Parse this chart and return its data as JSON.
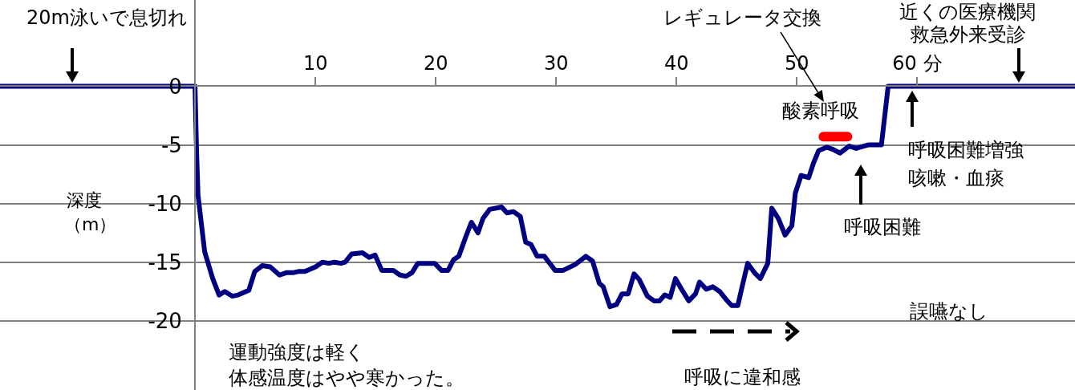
{
  "chart_data": {
    "type": "line",
    "ylabel": "深度（m）",
    "xlim": [
      -16.2,
      73.1
    ],
    "ylim": [
      -25.9,
      7.35
    ],
    "xticks": [
      10,
      20,
      30,
      40,
      50,
      {
        "value": 60,
        "label": "60 分"
      }
    ],
    "yticks": [
      0,
      -5,
      -10,
      -15,
      -20
    ],
    "grid": "y",
    "series": [
      {
        "color": "#000080",
        "x": [
          -16.2,
          0,
          0.13,
          0.25,
          0.8,
          1.47,
          2.0,
          2.47,
          3.09,
          3.58,
          4.47,
          4.96,
          5.58,
          6.24,
          7.02,
          7.58,
          8.13,
          8.58,
          9.13,
          10.02,
          10.58,
          11.13,
          11.58,
          12.13,
          12.47,
          13.02,
          13.91,
          14.47,
          14.96,
          15.51,
          16.47,
          17.02,
          17.53,
          18.02,
          18.51,
          19.91,
          20.47,
          21.02,
          21.47,
          21.91,
          22.47,
          22.96,
          23.51,
          23.91,
          24.47,
          25.47,
          25.91,
          26.47,
          27.02,
          27.47,
          27.91,
          28.42,
          29.02,
          29.91,
          30.58,
          31.58,
          32.47,
          33.02,
          33.58,
          33.91,
          34.47,
          35.02,
          35.47,
          35.98,
          36.47,
          36.91,
          37.58,
          38.13,
          38.58,
          39.02,
          39.47,
          39.91,
          40.47,
          41.02,
          41.58,
          41.91,
          42.47,
          43.02,
          43.58,
          44.13,
          44.58,
          45.09,
          45.47,
          45.91,
          46.47,
          46.96,
          47.58,
          47.91,
          48.47,
          49.02,
          49.58,
          49.87,
          50.35,
          50.98,
          51.36,
          51.8,
          52.47,
          53.02,
          53.58,
          54.35,
          54.91,
          55.91,
          57.02,
          57.58,
          73.1
        ],
        "values": [
          0,
          0,
          -5.6,
          -9.3,
          -14.1,
          -16.4,
          -17.8,
          -17.5,
          -17.9,
          -17.8,
          -17.4,
          -15.8,
          -15.3,
          -15.4,
          -16.1,
          -15.9,
          -15.9,
          -15.8,
          -15.8,
          -15.4,
          -15,
          -15.1,
          -15,
          -15.1,
          -15,
          -14.3,
          -14.2,
          -14.6,
          -14.4,
          -15.7,
          -15.7,
          -16.1,
          -16.2,
          -15.9,
          -15.1,
          -15.1,
          -15.7,
          -15.7,
          -14.8,
          -14.5,
          -12.9,
          -11.6,
          -12.5,
          -11.3,
          -10.5,
          -10.3,
          -10.8,
          -10.7,
          -11.1,
          -13.3,
          -13.5,
          -14.5,
          -14.5,
          -15.7,
          -15.7,
          -15.2,
          -14.5,
          -14.9,
          -16.8,
          -17.1,
          -18.8,
          -18.6,
          -17.7,
          -17.7,
          -16,
          -16.5,
          -17.9,
          -18.3,
          -18.3,
          -17.8,
          -18,
          -16.4,
          -17.4,
          -18.3,
          -17.7,
          -16.7,
          -17.3,
          -17.1,
          -17.5,
          -18.2,
          -18.7,
          -18.7,
          -17,
          -15.1,
          -15.9,
          -16.4,
          -15.1,
          -10.4,
          -11.3,
          -12.7,
          -11.9,
          -9.1,
          -7.6,
          -7.8,
          -6.6,
          -5.5,
          -5.2,
          -5.4,
          -5.7,
          -5.1,
          -5.3,
          -5,
          -5,
          0,
          0
        ]
      },
      {
        "name": "酸素呼吸",
        "color": "#ff0000",
        "x": [
          52.2,
          54.2
        ],
        "values": [
          -4.3,
          -4.3
        ]
      }
    ],
    "annotations": [
      "20m泳いで息切れ",
      "レギュレータ交換",
      "近くの医療機関",
      "救急外来受診",
      "呼吸困難増強",
      "咳嗽・血痰",
      "呼吸困難",
      "誤嚥なし",
      "運動強度は軽く",
      "体感温度はやや寒かった。",
      "呼吸に違和感"
    ]
  }
}
